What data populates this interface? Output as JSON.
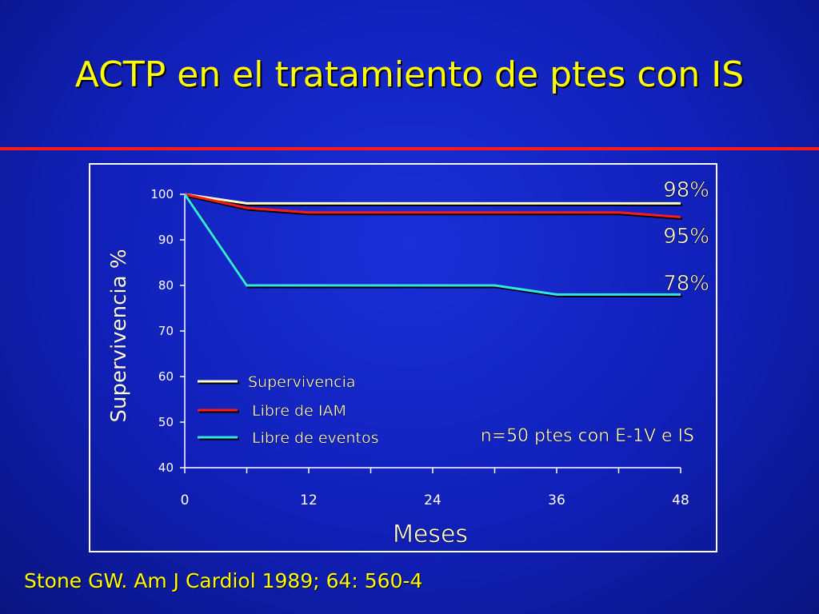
{
  "slide": {
    "title": "ACTP en el tratamiento de ptes con IS",
    "citation": "Stone GW. Am J Cardiol 1989; 64: 560-4"
  },
  "colors": {
    "title": "#ffff00",
    "divider": "#ff1a1a",
    "background": "#1020b8"
  },
  "chart_data": {
    "type": "line",
    "ylabel": "Supervivencia %",
    "xlabel": "Meses",
    "xlim": [
      0,
      48
    ],
    "ylim": [
      40,
      100
    ],
    "xticks": [
      0,
      12,
      24,
      36,
      48
    ],
    "yticks": [
      40,
      50,
      60,
      70,
      80,
      90,
      100
    ],
    "grid": false,
    "legend_position": "bottom-left",
    "series": [
      {
        "name": "Supervivencia",
        "color": "#ffffcc",
        "x": [
          0,
          6,
          12,
          24,
          36,
          48
        ],
        "y": [
          100,
          98,
          98,
          98,
          98,
          98
        ],
        "end_label": "98%"
      },
      {
        "name": "Libre de IAM",
        "color": "#ff1a1a",
        "x": [
          0,
          6,
          12,
          24,
          30,
          36,
          42,
          48
        ],
        "y": [
          100,
          97,
          96,
          96,
          96,
          96,
          96,
          95
        ],
        "end_label": "95%"
      },
      {
        "name": "Libre de eventos",
        "color": "#33e6e6",
        "x": [
          0,
          6,
          12,
          24,
          30,
          36,
          48
        ],
        "y": [
          100,
          80,
          80,
          80,
          80,
          78,
          78
        ],
        "end_label": "78%"
      }
    ],
    "annotation": "n=50 ptes con E-1V e IS"
  }
}
